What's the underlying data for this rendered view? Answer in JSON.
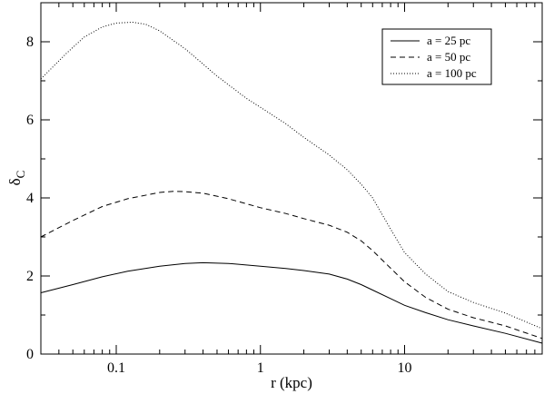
{
  "chart_data": {
    "type": "line",
    "xlabel": "r (kpc)",
    "ylabel_main": "δ",
    "ylabel_sub": "C",
    "x_scale": "log",
    "xlim": [
      0.03,
      90
    ],
    "ylim": [
      0,
      9
    ],
    "x_ticks": [
      {
        "value": 0.1,
        "label": "0.1"
      },
      {
        "value": 1,
        "label": "1"
      },
      {
        "value": 10,
        "label": "10"
      }
    ],
    "y_ticks": [
      {
        "value": 0,
        "label": "0"
      },
      {
        "value": 2,
        "label": "2"
      },
      {
        "value": 4,
        "label": "4"
      },
      {
        "value": 6,
        "label": "6"
      },
      {
        "value": 8,
        "label": "8"
      }
    ],
    "grid": false,
    "legend_position": "top-right",
    "series": [
      {
        "name": "a =  25 pc",
        "dash": "solid",
        "x": [
          0.03,
          0.05,
          0.08,
          0.12,
          0.2,
          0.3,
          0.4,
          0.6,
          1.0,
          1.5,
          2.0,
          3.0,
          4.0,
          5.0,
          6.0,
          8.0,
          10.0,
          14.0,
          20.0,
          30.0,
          50.0,
          90.0
        ],
        "y": [
          1.57,
          1.78,
          1.98,
          2.12,
          2.25,
          2.32,
          2.34,
          2.32,
          2.25,
          2.19,
          2.14,
          2.05,
          1.92,
          1.78,
          1.64,
          1.42,
          1.25,
          1.06,
          0.88,
          0.72,
          0.53,
          0.28
        ]
      },
      {
        "name": "a =  50 pc",
        "dash": "dashed",
        "x": [
          0.03,
          0.05,
          0.08,
          0.12,
          0.2,
          0.25,
          0.3,
          0.4,
          0.6,
          1.0,
          1.5,
          2.0,
          3.0,
          4.0,
          5.0,
          6.0,
          8.0,
          10.0,
          14.0,
          20.0,
          30.0,
          50.0,
          90.0
        ],
        "y": [
          3.0,
          3.42,
          3.78,
          3.98,
          4.14,
          4.17,
          4.16,
          4.12,
          3.98,
          3.75,
          3.6,
          3.47,
          3.3,
          3.12,
          2.9,
          2.65,
          2.2,
          1.85,
          1.45,
          1.15,
          0.93,
          0.72,
          0.4
        ]
      },
      {
        "name": "a = 100 pc",
        "dash": "dotted",
        "x": [
          0.03,
          0.045,
          0.06,
          0.08,
          0.1,
          0.13,
          0.16,
          0.2,
          0.3,
          0.5,
          0.8,
          1.0,
          1.5,
          2.0,
          3.0,
          4.0,
          5.0,
          6.0,
          8.0,
          10.0,
          14.0,
          20.0,
          30.0,
          50.0,
          90.0
        ],
        "y": [
          7.05,
          7.7,
          8.12,
          8.38,
          8.48,
          8.5,
          8.45,
          8.28,
          7.82,
          7.12,
          6.55,
          6.32,
          5.9,
          5.55,
          5.1,
          4.72,
          4.35,
          4.0,
          3.2,
          2.6,
          2.05,
          1.6,
          1.32,
          1.05,
          0.65
        ]
      }
    ]
  }
}
